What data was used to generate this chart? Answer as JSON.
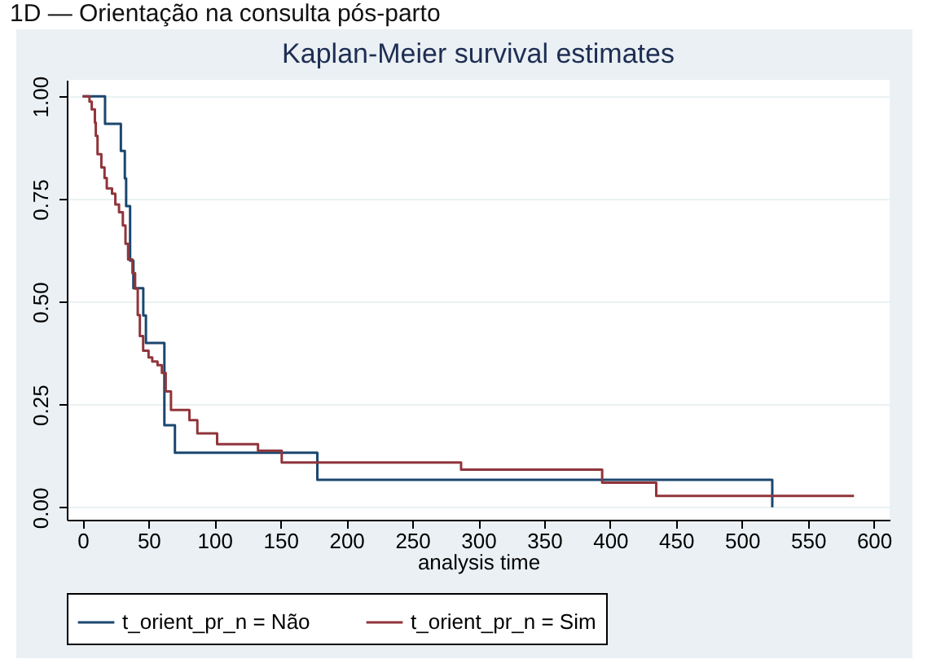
{
  "chart_data": {
    "type": "step",
    "title": "Kaplan-Meier survival estimates",
    "xlabel": "analysis time",
    "annotations": [
      "1D — Orientação na consulta pós-parto"
    ],
    "series": [
      {
        "name": "t_orient_pr_n = Não",
        "color": "#1a476f",
        "x": [
          0,
          17,
          29,
          32,
          33,
          36,
          38.5,
          46,
          48,
          62,
          70,
          178,
          523
        ],
        "values": [
          1,
          0.933,
          0.867,
          0.8,
          0.733,
          0.6,
          0.533,
          0.467,
          0.4,
          0.2,
          0.133,
          0.067,
          0
        ]
      },
      {
        "name": "t_orient_pr_n = Sim",
        "color": "#90353b",
        "x": [
          0,
          5.2,
          6.9,
          9.3,
          10,
          11.3,
          14.2,
          16.6,
          18.3,
          22.3,
          24.8,
          27.6,
          30.5,
          32.5,
          34.5,
          37.8,
          39.8,
          41.8,
          43.4,
          45.9,
          50,
          52.8,
          56.8,
          60.1,
          63,
          67,
          81,
          87,
          102,
          133,
          151,
          287,
          394,
          435,
          585
        ],
        "values": [
          1,
          0.987,
          0.968,
          0.936,
          0.904,
          0.859,
          0.827,
          0.801,
          0.776,
          0.763,
          0.737,
          0.718,
          0.686,
          0.641,
          0.603,
          0.57,
          0.532,
          0.468,
          0.417,
          0.381,
          0.365,
          0.355,
          0.346,
          0.327,
          0.282,
          0.237,
          0.212,
          0.18,
          0.154,
          0.138,
          0.109,
          0.092,
          0.06,
          0.028,
          0.028
        ]
      }
    ],
    "xlim": [
      -12,
      612
    ],
    "xticks": [
      0,
      50,
      100,
      150,
      200,
      250,
      300,
      350,
      400,
      450,
      500,
      550,
      600
    ],
    "ylim": [
      -0.03,
      1.04
    ],
    "yticks": [
      {
        "value": 0,
        "label": "0.00"
      },
      {
        "value": 0.25,
        "label": "0.25"
      },
      {
        "value": 0.5,
        "label": "0.50"
      },
      {
        "value": 0.75,
        "label": "0.75"
      },
      {
        "value": 1,
        "label": "1.00"
      }
    ],
    "grid": "y",
    "legend": "bottom"
  }
}
